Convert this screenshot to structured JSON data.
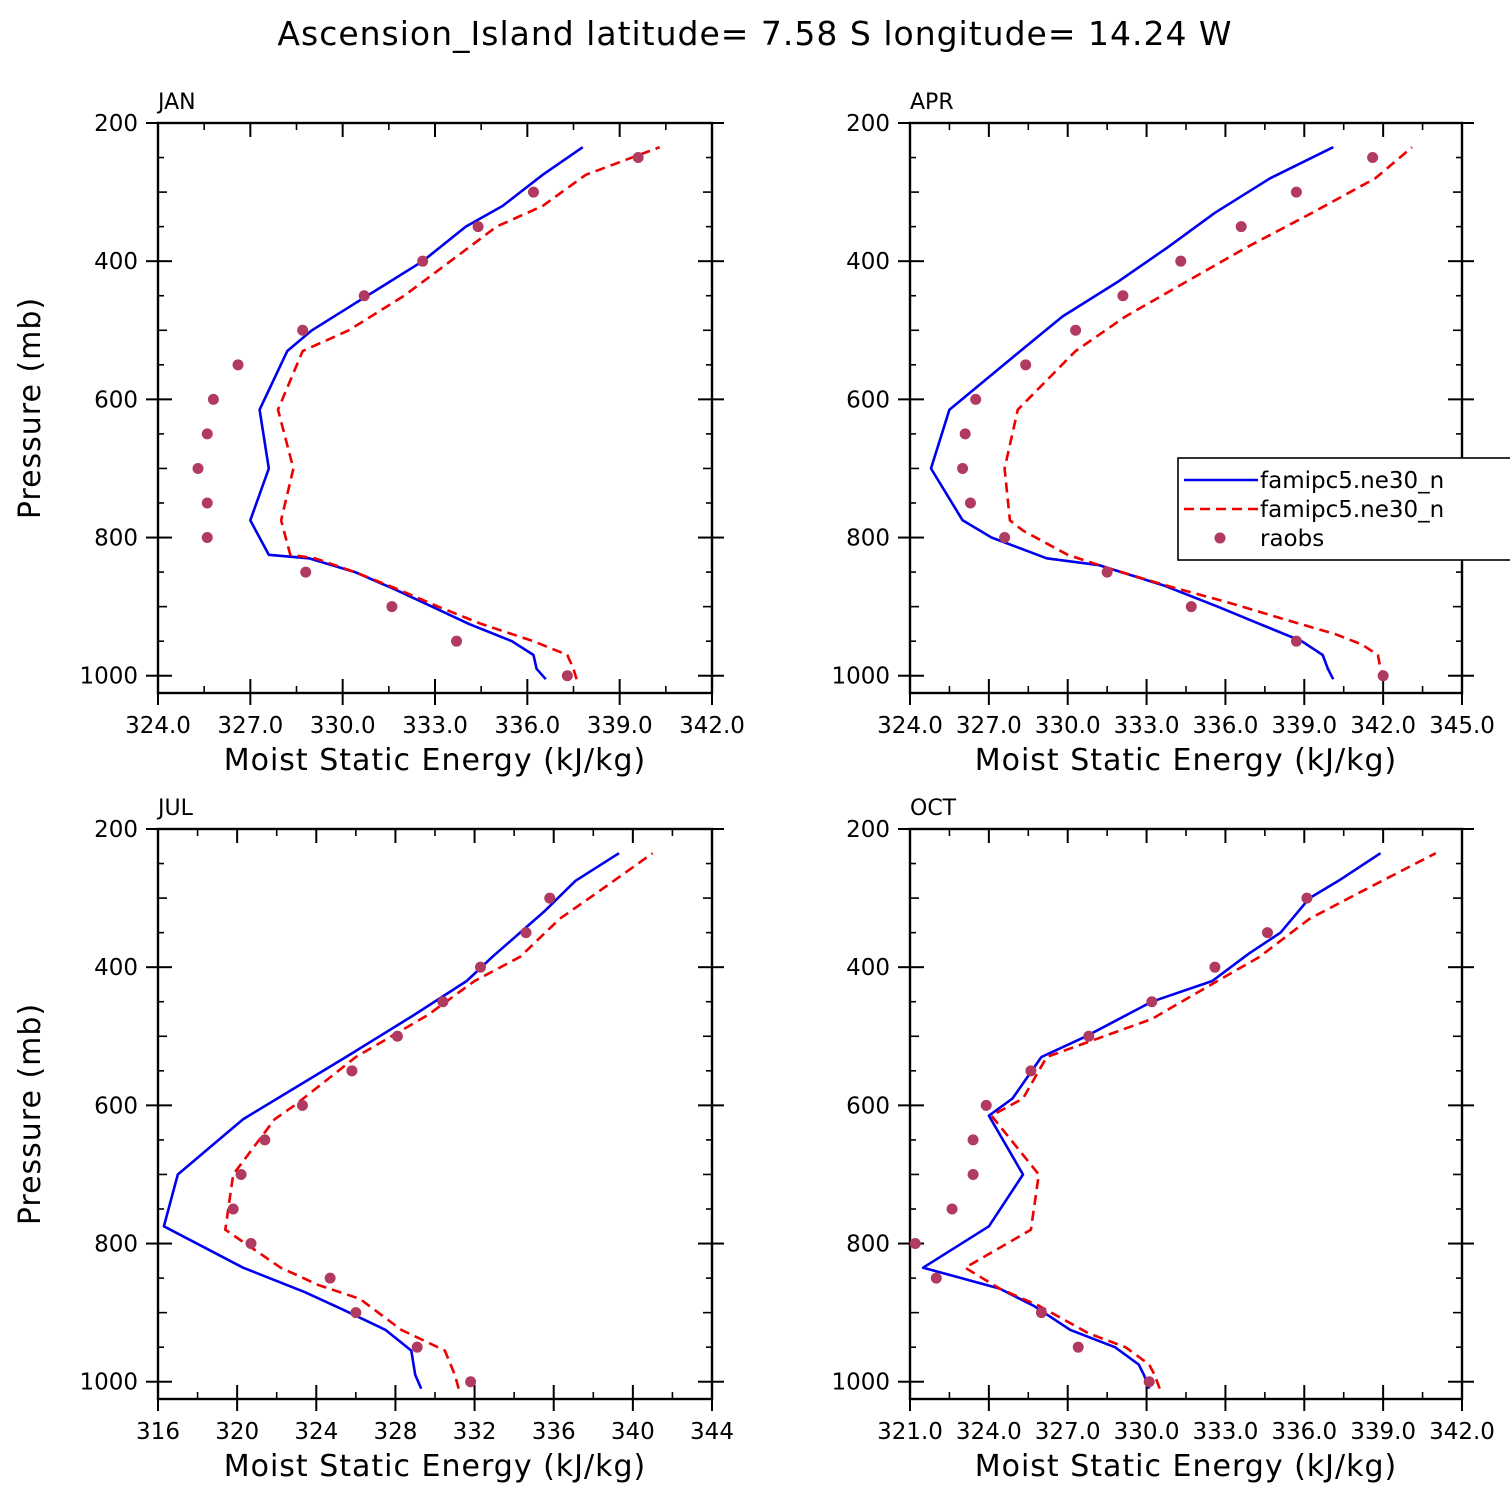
{
  "title": "Ascension_Island  latitude= 7.58 S longitude= 14.24 W",
  "colors": {
    "model1": "#0000ee",
    "model2": "#ee0000",
    "raobs": "#b03a60"
  },
  "legend": {
    "entries": [
      {
        "label": "famipc5.ne30_n",
        "style": "solid",
        "color": "#0000ee"
      },
      {
        "label": "famipc5.ne30_n",
        "style": "dashed",
        "color": "#ee0000"
      },
      {
        "label": "raobs",
        "style": "marker",
        "color": "#b03a60"
      }
    ],
    "placement": "right of APR panel"
  },
  "chart_data": [
    {
      "type": "line",
      "panel": "JAN",
      "xlabel": "Moist Static Energy (kJ/kg)",
      "ylabel": "Pressure (mb)",
      "xlim": [
        324.0,
        342.0
      ],
      "ylim": [
        1000,
        200
      ],
      "y_reversed": true,
      "xticks": [
        324.0,
        327.0,
        330.0,
        333.0,
        336.0,
        339.0,
        342.0
      ],
      "xtick_labels": [
        "324.0",
        "327.0",
        "330.0",
        "333.0",
        "336.0",
        "339.0",
        "342.0"
      ],
      "yticks": [
        200,
        400,
        600,
        800,
        1000
      ],
      "ytick_labels": [
        "200",
        "400",
        "600",
        "800",
        "1000"
      ],
      "series": [
        {
          "key": "model1",
          "style": "solid",
          "points": [
            [
              336.6,
              1005
            ],
            [
              336.3,
              990
            ],
            [
              336.2,
              970
            ],
            [
              335.5,
              950
            ],
            [
              334.1,
              925
            ],
            [
              332.9,
              900
            ],
            [
              331.7,
              875
            ],
            [
              330.4,
              850
            ],
            [
              328.9,
              830
            ],
            [
              327.6,
              825
            ],
            [
              327.0,
              775
            ],
            [
              327.6,
              700
            ],
            [
              327.3,
              615
            ],
            [
              328.2,
              530
            ],
            [
              329.0,
              500
            ],
            [
              330.8,
              450
            ],
            [
              332.6,
              400
            ],
            [
              334.0,
              350
            ],
            [
              335.2,
              320
            ],
            [
              336.5,
              275
            ],
            [
              337.8,
              235
            ]
          ]
        },
        {
          "key": "model2",
          "style": "dashed",
          "points": [
            [
              337.6,
              1005
            ],
            [
              337.5,
              990
            ],
            [
              337.3,
              970
            ],
            [
              336.2,
              950
            ],
            [
              334.5,
              925
            ],
            [
              333.1,
              900
            ],
            [
              331.8,
              875
            ],
            [
              330.4,
              850
            ],
            [
              329.1,
              830
            ],
            [
              328.3,
              825
            ],
            [
              328.0,
              775
            ],
            [
              328.4,
              700
            ],
            [
              327.9,
              615
            ],
            [
              328.7,
              530
            ],
            [
              330.2,
              500
            ],
            [
              332.0,
              450
            ],
            [
              333.5,
              400
            ],
            [
              335.0,
              350
            ],
            [
              336.5,
              320
            ],
            [
              337.9,
              275
            ],
            [
              340.3,
              235
            ]
          ]
        },
        {
          "key": "raobs",
          "style": "marker",
          "points": [
            [
              337.3,
              1000
            ],
            [
              333.7,
              950
            ],
            [
              331.6,
              900
            ],
            [
              328.8,
              850
            ],
            [
              325.6,
              800
            ],
            [
              325.6,
              750
            ],
            [
              325.3,
              700
            ],
            [
              325.6,
              650
            ],
            [
              325.8,
              600
            ],
            [
              326.6,
              550
            ],
            [
              328.7,
              500
            ],
            [
              330.7,
              450
            ],
            [
              332.6,
              400
            ],
            [
              334.4,
              350
            ],
            [
              336.2,
              300
            ],
            [
              339.6,
              250
            ]
          ]
        }
      ]
    },
    {
      "type": "line",
      "panel": "APR",
      "xlabel": "Moist Static Energy (kJ/kg)",
      "ylabel": "",
      "xlim": [
        324.0,
        345.0
      ],
      "ylim": [
        1000,
        200
      ],
      "y_reversed": true,
      "xticks": [
        324.0,
        327.0,
        330.0,
        333.0,
        336.0,
        339.0,
        342.0,
        345.0
      ],
      "xtick_labels": [
        "324.0",
        "327.0",
        "330.0",
        "333.0",
        "336.0",
        "339.0",
        "342.0",
        "345.0"
      ],
      "yticks": [
        200,
        400,
        600,
        800,
        1000
      ],
      "ytick_labels": [
        "200",
        "400",
        "600",
        "800",
        "1000"
      ],
      "series": [
        {
          "key": "model1",
          "style": "solid",
          "points": [
            [
              340.1,
              1005
            ],
            [
              339.9,
              990
            ],
            [
              339.7,
              970
            ],
            [
              338.9,
              950
            ],
            [
              337.3,
              925
            ],
            [
              335.7,
              900
            ],
            [
              333.7,
              870
            ],
            [
              331.2,
              840
            ],
            [
              329.2,
              830
            ],
            [
              327.1,
              800
            ],
            [
              326.0,
              775
            ],
            [
              324.8,
              700
            ],
            [
              325.5,
              615
            ],
            [
              328.2,
              530
            ],
            [
              329.8,
              480
            ],
            [
              331.9,
              430
            ],
            [
              333.8,
              380
            ],
            [
              335.6,
              330
            ],
            [
              337.7,
              280
            ],
            [
              340.1,
              235
            ]
          ]
        },
        {
          "key": "model2",
          "style": "dashed",
          "points": [
            [
              342.1,
              1005
            ],
            [
              341.9,
              990
            ],
            [
              341.8,
              970
            ],
            [
              341.2,
              955
            ],
            [
              340.2,
              940
            ],
            [
              338.4,
              920
            ],
            [
              336.2,
              895
            ],
            [
              333.8,
              870
            ],
            [
              331.6,
              845
            ],
            [
              330.0,
              825
            ],
            [
              328.3,
              790
            ],
            [
              327.8,
              775
            ],
            [
              327.6,
              700
            ],
            [
              328.1,
              615
            ],
            [
              330.3,
              530
            ],
            [
              332.2,
              480
            ],
            [
              334.5,
              430
            ],
            [
              336.8,
              380
            ],
            [
              339.3,
              330
            ],
            [
              341.7,
              280
            ],
            [
              343.1,
              235
            ]
          ]
        },
        {
          "key": "raobs",
          "style": "marker",
          "points": [
            [
              342.0,
              1000
            ],
            [
              338.7,
              950
            ],
            [
              334.7,
              900
            ],
            [
              331.5,
              850
            ],
            [
              327.6,
              800
            ],
            [
              326.3,
              750
            ],
            [
              326.0,
              700
            ],
            [
              326.1,
              650
            ],
            [
              326.5,
              600
            ],
            [
              328.4,
              550
            ],
            [
              330.3,
              500
            ],
            [
              332.1,
              450
            ],
            [
              334.3,
              400
            ],
            [
              336.6,
              350
            ],
            [
              338.7,
              300
            ],
            [
              341.6,
              250
            ]
          ]
        }
      ]
    },
    {
      "type": "line",
      "panel": "JUL",
      "xlabel": "Moist Static Energy (kJ/kg)",
      "ylabel": "Pressure (mb)",
      "xlim": [
        316,
        344
      ],
      "ylim": [
        1000,
        200
      ],
      "y_reversed": true,
      "xticks": [
        316,
        320,
        324,
        328,
        332,
        336,
        340,
        344
      ],
      "xtick_labels": [
        "316",
        "320",
        "324",
        "328",
        "332",
        "336",
        "340",
        "344"
      ],
      "yticks": [
        200,
        400,
        600,
        800,
        1000
      ],
      "ytick_labels": [
        "200",
        "400",
        "600",
        "800",
        "1000"
      ],
      "series": [
        {
          "key": "model1",
          "style": "solid",
          "points": [
            [
              329.3,
              1010
            ],
            [
              329.0,
              990
            ],
            [
              328.8,
              955
            ],
            [
              327.5,
              925
            ],
            [
              325.3,
              895
            ],
            [
              323.4,
              870
            ],
            [
              320.3,
              835
            ],
            [
              316.3,
              775
            ],
            [
              317.0,
              700
            ],
            [
              320.3,
              620
            ],
            [
              325.5,
              530
            ],
            [
              328.9,
              470
            ],
            [
              331.6,
              420
            ],
            [
              332.9,
              385
            ],
            [
              335.5,
              320
            ],
            [
              337.1,
              275
            ],
            [
              339.3,
              235
            ]
          ]
        },
        {
          "key": "model2",
          "style": "dashed",
          "points": [
            [
              331.2,
              1010
            ],
            [
              331.0,
              990
            ],
            [
              330.5,
              955
            ],
            [
              328.3,
              925
            ],
            [
              326.2,
              880
            ],
            [
              324.1,
              860
            ],
            [
              322.2,
              835
            ],
            [
              319.4,
              780
            ],
            [
              319.8,
              700
            ],
            [
              321.9,
              620
            ],
            [
              322.9,
              600
            ],
            [
              326.0,
              530
            ],
            [
              329.6,
              470
            ],
            [
              332.0,
              420
            ],
            [
              334.3,
              385
            ],
            [
              336.3,
              330
            ],
            [
              338.3,
              290
            ],
            [
              341.0,
              235
            ]
          ]
        },
        {
          "key": "raobs",
          "style": "marker",
          "points": [
            [
              331.8,
              1000
            ],
            [
              329.1,
              950
            ],
            [
              326.0,
              900
            ],
            [
              324.7,
              850
            ],
            [
              320.7,
              800
            ],
            [
              319.8,
              750
            ],
            [
              320.2,
              700
            ],
            [
              321.4,
              650
            ],
            [
              323.3,
              600
            ],
            [
              325.8,
              550
            ],
            [
              328.1,
              500
            ],
            [
              330.4,
              450
            ],
            [
              332.3,
              400
            ],
            [
              334.6,
              350
            ],
            [
              335.8,
              300
            ]
          ]
        }
      ]
    },
    {
      "type": "line",
      "panel": "OCT",
      "xlabel": "Moist Static Energy (kJ/kg)",
      "ylabel": "",
      "xlim": [
        321.0,
        342.0
      ],
      "ylim": [
        1000,
        200
      ],
      "y_reversed": true,
      "xticks": [
        321.0,
        324.0,
        327.0,
        330.0,
        333.0,
        336.0,
        339.0,
        342.0
      ],
      "xtick_labels": [
        "321.0",
        "324.0",
        "327.0",
        "330.0",
        "333.0",
        "336.0",
        "339.0",
        "342.0"
      ],
      "yticks": [
        200,
        400,
        600,
        800,
        1000
      ],
      "ytick_labels": [
        "200",
        "400",
        "600",
        "800",
        "1000"
      ],
      "series": [
        {
          "key": "model1",
          "style": "solid",
          "points": [
            [
              330.1,
              1010
            ],
            [
              329.9,
              990
            ],
            [
              329.7,
              975
            ],
            [
              328.8,
              950
            ],
            [
              327.1,
              925
            ],
            [
              325.7,
              890
            ],
            [
              324.4,
              865
            ],
            [
              321.5,
              835
            ],
            [
              324.0,
              775
            ],
            [
              325.3,
              700
            ],
            [
              324.0,
              615
            ],
            [
              324.9,
              590
            ],
            [
              326.0,
              530
            ],
            [
              327.7,
              500
            ],
            [
              330.2,
              450
            ],
            [
              332.5,
              420
            ],
            [
              333.9,
              380
            ],
            [
              335.1,
              350
            ],
            [
              336.2,
              300
            ],
            [
              337.3,
              275
            ],
            [
              338.9,
              235
            ]
          ]
        },
        {
          "key": "model2",
          "style": "dashed",
          "points": [
            [
              330.5,
              1010
            ],
            [
              330.3,
              990
            ],
            [
              330.1,
              975
            ],
            [
              329.2,
              950
            ],
            [
              327.8,
              930
            ],
            [
              325.9,
              890
            ],
            [
              324.4,
              865
            ],
            [
              323.1,
              835
            ],
            [
              325.6,
              780
            ],
            [
              325.9,
              700
            ],
            [
              324.1,
              615
            ],
            [
              325.3,
              590
            ],
            [
              326.2,
              530
            ],
            [
              330.2,
              475
            ],
            [
              332.7,
              420
            ],
            [
              334.3,
              385
            ],
            [
              336.2,
              330
            ],
            [
              338.2,
              290
            ],
            [
              341.0,
              235
            ]
          ]
        },
        {
          "key": "raobs",
          "style": "marker",
          "points": [
            [
              330.1,
              1000
            ],
            [
              327.4,
              950
            ],
            [
              326.0,
              900
            ],
            [
              322.0,
              850
            ],
            [
              321.2,
              800
            ],
            [
              322.6,
              750
            ],
            [
              323.4,
              700
            ],
            [
              323.4,
              650
            ],
            [
              323.9,
              600
            ],
            [
              325.6,
              550
            ],
            [
              327.8,
              500
            ],
            [
              330.2,
              450
            ],
            [
              332.6,
              400
            ],
            [
              334.6,
              350
            ],
            [
              336.1,
              300
            ]
          ]
        }
      ]
    }
  ]
}
